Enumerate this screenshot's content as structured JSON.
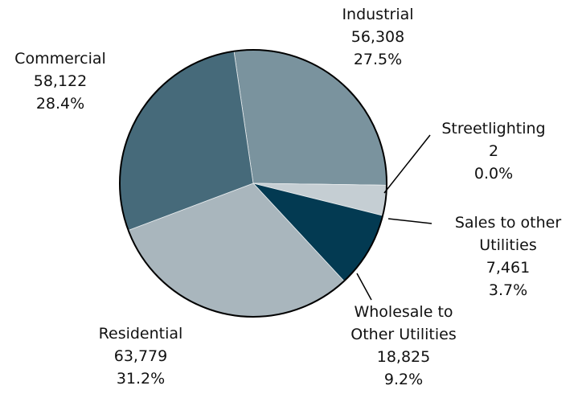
{
  "chart_data": {
    "type": "pie",
    "categories": [
      "Industrial",
      "Streetlighting",
      "Sales to other Utilities",
      "Wholesale to Other Utilities",
      "Residential",
      "Commercial"
    ],
    "values": [
      56308,
      2,
      7461,
      18825,
      63779,
      58122
    ],
    "value_labels": [
      "56,308",
      "2",
      "7,461",
      "18,825",
      "63,779",
      "58,122"
    ],
    "percents": [
      27.5,
      0.0,
      3.7,
      9.2,
      31.2,
      28.4
    ],
    "percent_labels": [
      "27.5%",
      "0.0%",
      "3.7%",
      "9.2%",
      "31.2%",
      "28.4%"
    ],
    "colors": [
      "#7a939e",
      "#3d6272",
      "#c5ced3",
      "#033a52",
      "#a9b6bd",
      "#466a7a"
    ]
  }
}
